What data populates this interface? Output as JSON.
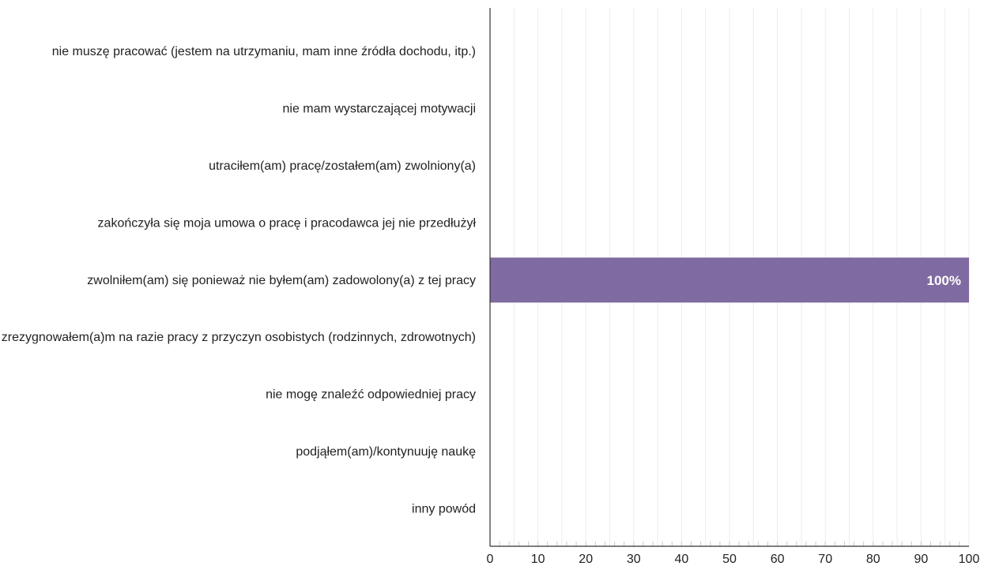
{
  "chart_data": {
    "type": "bar",
    "orientation": "horizontal",
    "categories": [
      "nie muszę pracować (jestem na utrzymaniu, mam inne źródła dochodu, itp.)",
      "nie mam wystarczającej motywacji",
      "utraciłem(am) pracę/zostałem(am) zwolniony(a)",
      "zakończyła się moja umowa o pracę i pracodawca jej nie przedłużył",
      "zwolniłem(am) się ponieważ nie byłem(am) zadowolony(a) z tej pracy",
      "zrezygnowałem(a)m na razie pracy z przyczyn osobistych (rodzinnych, zdrowotnych)",
      "nie mogę znaleźć odpowiedniej pracy",
      "podjąłem(am)/kontynuuję naukę",
      "inny powód"
    ],
    "values": [
      0,
      0,
      0,
      0,
      100,
      0,
      0,
      0,
      0
    ],
    "value_labels": [
      "",
      "",
      "",
      "",
      "100%",
      "",
      "",
      "",
      ""
    ],
    "xlim": [
      0,
      100
    ],
    "xticks": [
      0,
      10,
      20,
      30,
      40,
      50,
      60,
      70,
      80,
      90,
      100
    ],
    "minor_gridlines": true,
    "title": "",
    "xlabel": "",
    "ylabel": ""
  },
  "colors": {
    "bar": "#7f6ba1",
    "gridline": "#ececec",
    "axis": "#333333",
    "text": "#222222",
    "value_label": "#ffffff"
  }
}
